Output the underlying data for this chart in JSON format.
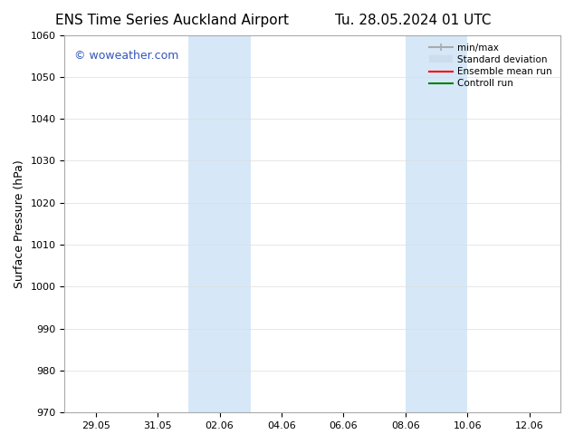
{
  "title_left": "ENS Time Series Auckland Airport",
  "title_right": "Tu. 28.05.2024 01 UTC",
  "ylabel": "Surface Pressure (hPa)",
  "ylim": [
    970,
    1060
  ],
  "yticks": [
    970,
    980,
    990,
    1000,
    1010,
    1020,
    1030,
    1040,
    1050,
    1060
  ],
  "xlim_start": "2024-05-28",
  "xlim_end": "2024-06-13",
  "xtick_labels": [
    "29.05",
    "31.05",
    "02.06",
    "04.06",
    "06.06",
    "08.06",
    "10.06",
    "12.06"
  ],
  "shaded_bands": [
    {
      "x_start": "2024-06-01",
      "x_end": "2024-06-03",
      "color": "#d6e8f7"
    },
    {
      "x_start": "2024-06-08",
      "x_end": "2024-06-10",
      "color": "#d6e8f7"
    }
  ],
  "watermark_text": "© woweather.com",
  "watermark_color": "#3355bb",
  "legend_entries": [
    {
      "label": "min/max",
      "color": "#aaaaaa",
      "linestyle": "-",
      "linewidth": 1.5
    },
    {
      "label": "Standard deviation",
      "color": "#ccddee",
      "linestyle": "-",
      "linewidth": 6
    },
    {
      "label": "Ensemble mean run",
      "color": "red",
      "linestyle": "-",
      "linewidth": 1.5
    },
    {
      "label": "Controll run",
      "color": "green",
      "linestyle": "-",
      "linewidth": 1.5
    }
  ],
  "background_color": "#ffffff",
  "grid_color": "#dddddd",
  "title_fontsize": 11,
  "label_fontsize": 9,
  "tick_fontsize": 8
}
